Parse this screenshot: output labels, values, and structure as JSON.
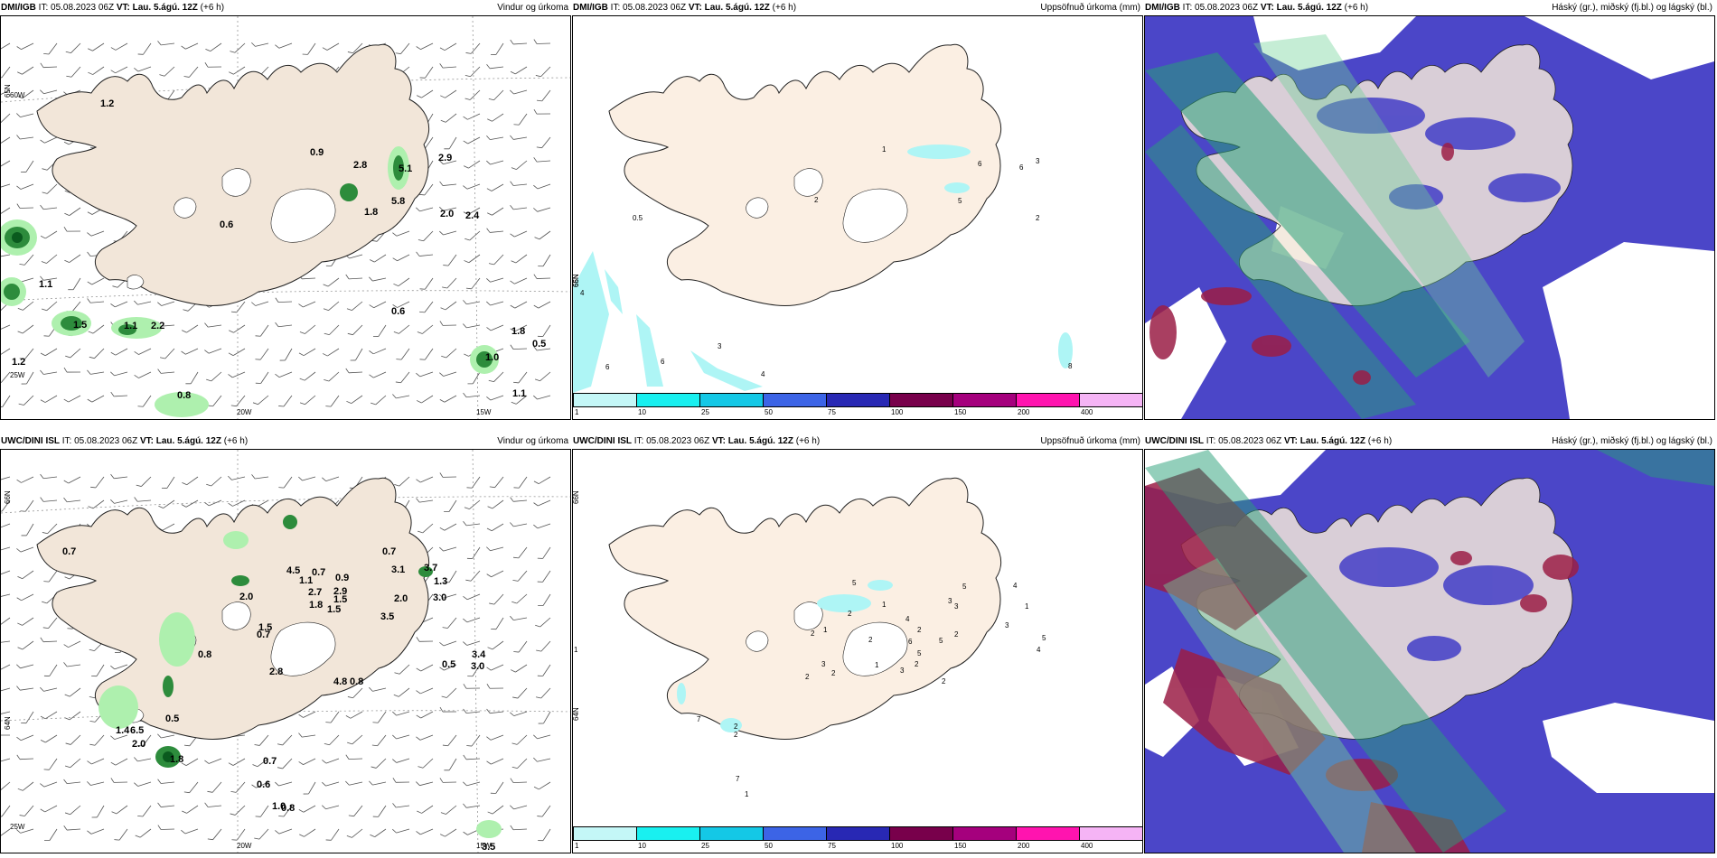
{
  "panels": [
    {
      "id": "p1",
      "source": "DMI/IGB",
      "it_label": " IT: 05.08.2023 06Z ",
      "vt_label": "VT: Lau. 5.ágú. 12Z",
      "offset": " (+6 h)",
      "field": "Vindur og úrkoma",
      "kind": "wind",
      "values": [
        "1.2",
        "0.9",
        "2.8",
        "5.1",
        "2.9",
        "1.8",
        "5.8",
        "2.0",
        "2.4",
        "0.6",
        "1.1",
        "1.2",
        "1.5",
        "2.2",
        "1.1",
        "0.6",
        "1.8",
        "0.5",
        "1.0",
        "1.1",
        "0.8"
      ],
      "axis": [
        "65N",
        "60W",
        "25W",
        "20W",
        "15W"
      ]
    },
    {
      "id": "p2",
      "source": "DMI/IGB",
      "it_label": " IT: 05.08.2023 06Z ",
      "vt_label": "VT: Lau. 5.ágú. 12Z",
      "offset": " (+6 h)",
      "field": "Uppsöfnuð úrkoma (mm)",
      "kind": "accum",
      "values": [
        "1",
        "6",
        "6",
        "3",
        "2",
        "5",
        "2",
        "0.5",
        "4",
        "6",
        "6",
        "3",
        "4",
        "8"
      ],
      "axis": [
        "65N",
        "66N"
      ]
    },
    {
      "id": "p3",
      "source": "DMI/IGB",
      "it_label": " IT: 05.08.2023 06Z ",
      "vt_label": "VT: Lau. 5.ágú. 12Z",
      "offset": " (+6 h)",
      "field": "Háský (gr.), miðský (fj.bl.) og lágský (bl.)",
      "kind": "cloud",
      "values": [],
      "axis": []
    },
    {
      "id": "p4",
      "source": "UWC/DINI ISL",
      "it_label": " IT: 05.08.2023 06Z ",
      "vt_label": "VT: Lau. 5.ágú. 12Z",
      "offset": " (+6 h)",
      "field": "Vindur og úrkoma",
      "kind": "wind",
      "values": [
        "0.7",
        "0.7",
        "4.5",
        "0.7",
        "0.9",
        "1.1",
        "2.9",
        "2.7",
        "1.8",
        "1.5",
        "1.5",
        "3.1",
        "3.7",
        "1.3",
        "3.0",
        "2.0",
        "2.0",
        "3.5",
        "1.5",
        "0.7",
        "0.8",
        "2.8",
        "4.8",
        "0.8",
        "0.5",
        "3.4",
        "3.0",
        "0.5",
        "1.4",
        "6.5",
        "2.0",
        "1.8",
        "0.7",
        "0.6",
        "1.0",
        "0.8",
        "3.5"
      ],
      "axis": [
        "66N",
        "64N",
        "25W",
        "20W",
        "15W"
      ]
    },
    {
      "id": "p5",
      "source": "UWC/DINI ISL",
      "it_label": " IT: 05.08.2023 06Z ",
      "vt_label": "VT: Lau. 5.ágú. 12Z",
      "offset": " (+6 h)",
      "field": "Uppsöfnuð úrkoma (mm)",
      "kind": "accum",
      "values": [
        "5",
        "5",
        "4",
        "2",
        "1",
        "3",
        "2",
        "2",
        "2",
        "6",
        "2",
        "4",
        "1",
        "3",
        "3",
        "2",
        "5",
        "1",
        "3",
        "2",
        "5",
        "3",
        "1",
        "2",
        "2",
        "5",
        "4",
        "7",
        "2",
        "2",
        "7",
        "1",
        "2",
        "5",
        "1"
      ],
      "axis": [
        "66N",
        "64N"
      ]
    },
    {
      "id": "p6",
      "source": "UWC/DINI ISL",
      "it_label": " IT: 05.08.2023 06Z ",
      "vt_label": "VT: Lau. 5.ágú. 12Z",
      "offset": " (+6 h)",
      "field": "Háský (gr.), miðský (fj.bl.) og lágský (bl.)",
      "kind": "cloud",
      "values": [],
      "axis": []
    }
  ],
  "legend": {
    "ticks": [
      "1",
      "10",
      "25",
      "50",
      "75",
      "100",
      "150",
      "200",
      "400"
    ],
    "colors": [
      "#c4f7f7",
      "#19f0f0",
      "#14c8e6",
      "#3c64e6",
      "#2828b4",
      "#78004b",
      "#a5007d",
      "#ff14af",
      "#f5b4f5"
    ]
  },
  "colors": {
    "land": "#f2e6d9",
    "land_pale": "#fbefe3",
    "precip_light": "#aef0ae",
    "precip_mid": "#2d8c3c",
    "precip_dark": "#0a5a1e",
    "accum_light": "#aef5f5",
    "cloud_low": "#4b46c8",
    "cloud_mid": "#9b1e46",
    "cloud_high": "#28a078"
  }
}
